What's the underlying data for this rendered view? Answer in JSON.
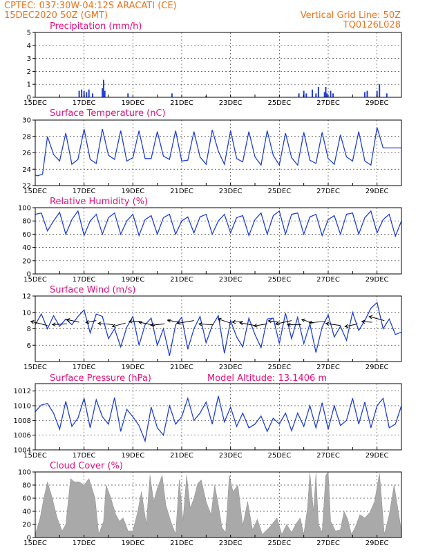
{
  "header": {
    "line1_left": "CPTEC:   037:30W-04:12S   ARACATI (CE)",
    "line2_left": "15DEC2020 50Z (GMT)",
    "line1_right": "Vertical Grid Line: 50Z",
    "line2_right": "TQ0126L028"
  },
  "x_ticks": [
    "15DEC",
    "17DEC",
    "19DEC",
    "21DEC",
    "23DEC",
    "25DEC",
    "27DEC",
    "29DEC"
  ],
  "colors": {
    "header": "#e8731d",
    "title": "#e0107a",
    "series": "#1f3fd6",
    "cloud": "#a9a9a9",
    "arrow": "#000000"
  },
  "panels": {
    "precip": {
      "title": "Precipitation (mm/h)",
      "yticks": [
        "0",
        "1",
        "2",
        "3",
        "4",
        "5"
      ]
    },
    "temp": {
      "title": "Surface Temperature (nC)",
      "yticks": [
        "22",
        "24",
        "26",
        "28",
        "30"
      ]
    },
    "rh": {
      "title": "Relative Humidity (%)",
      "yticks": [
        "0",
        "20",
        "40",
        "60",
        "80",
        "100"
      ]
    },
    "wind": {
      "title": "Surface Wind (m/s)",
      "yticks": [
        "6",
        "8",
        "10",
        "12"
      ]
    },
    "press": {
      "title": "Surface Pressure (hPa)",
      "extra": "Model Altitude: 13.1406 m",
      "yticks": [
        "1004",
        "1006",
        "1008",
        "1010",
        "1012"
      ]
    },
    "cloud": {
      "title": "Cloud Cover (%)",
      "yticks": [
        "0",
        "20",
        "40",
        "60",
        "80",
        "100"
      ]
    }
  },
  "chart_data": [
    {
      "type": "bar",
      "title": "Precipitation (mm/h)",
      "xlabel": "",
      "ylabel": "",
      "ylim": [
        0,
        5
      ],
      "x": [
        16.8,
        16.9,
        17.0,
        17.1,
        17.2,
        17.35,
        17.75,
        17.8,
        17.85,
        18.8,
        20.6,
        22.0,
        25.8,
        26.0,
        26.1,
        26.35,
        26.5,
        26.6,
        26.85,
        26.9,
        26.95,
        27.1,
        27.2,
        28.5,
        28.6,
        29.0,
        29.1,
        29.4
      ],
      "values": [
        0.5,
        0.6,
        0.5,
        0.4,
        0.6,
        0.3,
        0.7,
        1.35,
        0.5,
        0.3,
        0.3,
        0.1,
        0.3,
        0.5,
        0.3,
        0.6,
        0.3,
        0.8,
        0.4,
        0.8,
        0.3,
        0.5,
        0.3,
        0.4,
        0.5,
        0.5,
        1.0,
        0.3
      ]
    },
    {
      "type": "line",
      "title": "Surface Temperature (nC)",
      "xlabel": "",
      "ylabel": "",
      "ylim": [
        22,
        30
      ],
      "x": [
        15.0,
        15.1,
        15.3,
        15.5,
        15.75,
        16.0,
        16.25,
        16.5,
        16.75,
        17.0,
        17.25,
        17.5,
        17.75,
        18.0,
        18.25,
        18.5,
        18.75,
        19.0,
        19.25,
        19.5,
        19.75,
        20.0,
        20.25,
        20.5,
        20.75,
        21.0,
        21.25,
        21.5,
        21.75,
        22.0,
        22.25,
        22.5,
        22.75,
        23.0,
        23.25,
        23.5,
        23.75,
        24.0,
        24.25,
        24.5,
        24.75,
        25.0,
        25.25,
        25.5,
        25.75,
        26.0,
        26.25,
        26.5,
        26.75,
        27.0,
        27.25,
        27.5,
        27.75,
        28.0,
        28.25,
        28.5,
        28.75,
        29.0,
        29.25,
        29.5,
        29.75,
        30.0
      ],
      "values": [
        23.3,
        23.2,
        23.4,
        28.0,
        25.8,
        25.0,
        28.4,
        24.6,
        25.2,
        28.9,
        25.2,
        24.7,
        28.9,
        25.7,
        25.2,
        28.7,
        25.0,
        25.4,
        28.7,
        25.3,
        25.3,
        28.6,
        25.6,
        25.2,
        28.7,
        25.0,
        25.1,
        28.6,
        25.5,
        24.6,
        28.8,
        26.2,
        24.6,
        28.7,
        25.3,
        24.9,
        28.6,
        25.5,
        24.5,
        28.7,
        25.7,
        24.5,
        28.4,
        25.4,
        24.5,
        28.5,
        25.1,
        24.7,
        28.5,
        25.3,
        24.6,
        28.2,
        25.5,
        25.0,
        28.6,
        25.0,
        24.5,
        29.1,
        26.6,
        26.6,
        26.6,
        26.6
      ]
    },
    {
      "type": "line",
      "title": "Relative Humidity (%)",
      "xlabel": "",
      "ylabel": "",
      "ylim": [
        0,
        100
      ],
      "x": [
        15.0,
        15.25,
        15.5,
        15.75,
        16.0,
        16.25,
        16.5,
        16.75,
        17.0,
        17.25,
        17.5,
        17.75,
        18.0,
        18.25,
        18.5,
        18.75,
        19.0,
        19.25,
        19.5,
        19.75,
        20.0,
        20.25,
        20.5,
        20.75,
        21.0,
        21.25,
        21.5,
        21.75,
        22.0,
        22.25,
        22.5,
        22.75,
        23.0,
        23.25,
        23.5,
        23.75,
        24.0,
        24.25,
        24.5,
        24.75,
        25.0,
        25.25,
        25.5,
        25.75,
        26.0,
        26.25,
        26.5,
        26.75,
        27.0,
        27.25,
        27.5,
        27.75,
        28.0,
        28.25,
        28.5,
        28.75,
        29.0,
        29.25,
        29.5,
        29.75,
        30.0
      ],
      "values": [
        90,
        92,
        65,
        80,
        93,
        60,
        82,
        95,
        58,
        80,
        90,
        60,
        85,
        92,
        60,
        80,
        90,
        58,
        82,
        88,
        60,
        85,
        90,
        60,
        80,
        86,
        62,
        86,
        90,
        60,
        80,
        90,
        62,
        85,
        88,
        58,
        82,
        92,
        60,
        88,
        95,
        60,
        90,
        92,
        60,
        86,
        90,
        58,
        82,
        88,
        60,
        90,
        92,
        60,
        85,
        95,
        62,
        82,
        90,
        57,
        80
      ]
    },
    {
      "type": "line",
      "title": "Surface Wind (m/s)",
      "xlabel": "",
      "ylabel": "",
      "ylim": [
        4,
        12
      ],
      "x": [
        15.0,
        15.25,
        15.5,
        15.75,
        16.0,
        16.25,
        16.5,
        16.75,
        17.0,
        17.25,
        17.5,
        17.75,
        18.0,
        18.25,
        18.5,
        18.75,
        19.0,
        19.25,
        19.5,
        19.75,
        20.0,
        20.25,
        20.5,
        20.75,
        21.0,
        21.25,
        21.5,
        21.75,
        22.0,
        22.25,
        22.5,
        22.75,
        23.0,
        23.25,
        23.5,
        23.75,
        24.0,
        24.25,
        24.5,
        24.75,
        25.0,
        25.25,
        25.5,
        25.75,
        26.0,
        26.25,
        26.5,
        26.75,
        27.0,
        27.25,
        27.5,
        27.75,
        28.0,
        28.25,
        28.5,
        28.75,
        29.0,
        29.25,
        29.5,
        29.75,
        30.0
      ],
      "values": [
        8.5,
        9.8,
        8.0,
        9.6,
        8.3,
        9.2,
        8.5,
        9.5,
        10.3,
        7.5,
        9.8,
        9.5,
        6.8,
        8.0,
        5.8,
        8.2,
        9.5,
        6.0,
        8.5,
        9.3,
        6.0,
        8.0,
        4.7,
        8.5,
        9.4,
        5.5,
        8.0,
        9.5,
        6.3,
        8.4,
        9.6,
        5.0,
        9.0,
        7.0,
        5.8,
        9.3,
        7.3,
        5.7,
        9.2,
        9.3,
        6.2,
        9.9,
        6.8,
        9.4,
        6.2,
        8.6,
        5.1,
        8.2,
        9.7,
        7.0,
        8.3,
        6.6,
        10.0,
        7.8,
        9.0,
        10.5,
        11.2,
        8.0,
        9.2,
        7.3,
        7.6
      ]
    },
    {
      "type": "line",
      "title": "Surface Pressure (hPa)",
      "xlabel": "",
      "ylabel": "",
      "ylim": [
        1004,
        1013
      ],
      "x": [
        15.0,
        15.25,
        15.5,
        15.75,
        16.0,
        16.25,
        16.5,
        16.75,
        17.0,
        17.25,
        17.5,
        17.75,
        18.0,
        18.25,
        18.5,
        18.75,
        19.0,
        19.25,
        19.5,
        19.75,
        20.0,
        20.25,
        20.5,
        20.75,
        21.0,
        21.25,
        21.5,
        21.75,
        22.0,
        22.25,
        22.5,
        22.75,
        23.0,
        23.25,
        23.5,
        23.75,
        24.0,
        24.25,
        24.5,
        24.75,
        25.0,
        25.25,
        25.5,
        25.75,
        26.0,
        26.25,
        26.5,
        26.75,
        27.0,
        27.25,
        27.5,
        27.75,
        28.0,
        28.25,
        28.5,
        28.75,
        29.0,
        29.25,
        29.5,
        29.75,
        30.0
      ],
      "values": [
        1009.2,
        1010.1,
        1010.3,
        1009.0,
        1006.8,
        1010.6,
        1007.2,
        1008.3,
        1011.0,
        1007.0,
        1010.8,
        1008.5,
        1007.5,
        1011.1,
        1006.5,
        1009.5,
        1008.5,
        1007.3,
        1005.2,
        1009.8,
        1007.0,
        1006.0,
        1010.0,
        1007.5,
        1008.5,
        1011.0,
        1008.0,
        1009.0,
        1010.5,
        1007.5,
        1011.3,
        1007.8,
        1009.8,
        1007.2,
        1009.0,
        1007.0,
        1007.5,
        1008.6,
        1006.5,
        1008.3,
        1007.5,
        1009.0,
        1006.6,
        1009.0,
        1007.2,
        1010.0,
        1007.0,
        1010.4,
        1006.8,
        1010.0,
        1007.3,
        1008.0,
        1011.0,
        1007.5,
        1010.5,
        1007.0,
        1010.0,
        1011.0,
        1007.0,
        1007.5,
        1010.0
      ]
    },
    {
      "type": "area",
      "title": "Cloud Cover (%)",
      "xlabel": "",
      "ylabel": "",
      "ylim": [
        0,
        100
      ],
      "x": [
        15.0,
        15.2,
        15.35,
        15.5,
        15.7,
        15.9,
        16.1,
        16.25,
        16.45,
        16.6,
        16.8,
        17.0,
        17.2,
        17.45,
        17.6,
        17.8,
        17.9,
        18.1,
        18.3,
        18.45,
        18.6,
        18.8,
        19.0,
        19.2,
        19.35,
        19.55,
        19.7,
        19.85,
        20.0,
        20.2,
        20.35,
        20.55,
        20.75,
        20.9,
        21.05,
        21.2,
        21.35,
        21.5,
        21.65,
        21.8,
        22.0,
        22.2,
        22.35,
        22.5,
        22.65,
        22.8,
        22.95,
        23.1,
        23.3,
        23.5,
        23.7,
        23.9,
        24.1,
        24.3,
        24.5,
        24.7,
        24.9,
        25.1,
        25.3,
        25.5,
        25.7,
        25.85,
        26.0,
        26.15,
        26.25,
        26.4,
        26.5,
        26.6,
        26.75,
        26.9,
        27.0,
        27.1,
        27.3,
        27.5,
        27.65,
        27.8,
        27.95,
        28.1,
        28.3,
        28.5,
        28.7,
        28.9,
        29.1,
        29.3,
        29.5,
        29.7,
        30.0
      ],
      "values": [
        5,
        30,
        60,
        85,
        60,
        30,
        10,
        20,
        90,
        85,
        85,
        80,
        90,
        60,
        5,
        25,
        80,
        60,
        35,
        25,
        30,
        10,
        10,
        40,
        70,
        20,
        95,
        55,
        75,
        95,
        50,
        25,
        5,
        88,
        25,
        95,
        45,
        60,
        82,
        88,
        55,
        35,
        80,
        50,
        15,
        8,
        95,
        70,
        80,
        18,
        55,
        12,
        28,
        5,
        12,
        20,
        30,
        5,
        20,
        8,
        22,
        30,
        5,
        45,
        98,
        40,
        98,
        20,
        8,
        95,
        100,
        25,
        10,
        12,
        40,
        28,
        5,
        15,
        35,
        30,
        38,
        55,
        98,
        5,
        35,
        80,
        10
      ]
    }
  ]
}
